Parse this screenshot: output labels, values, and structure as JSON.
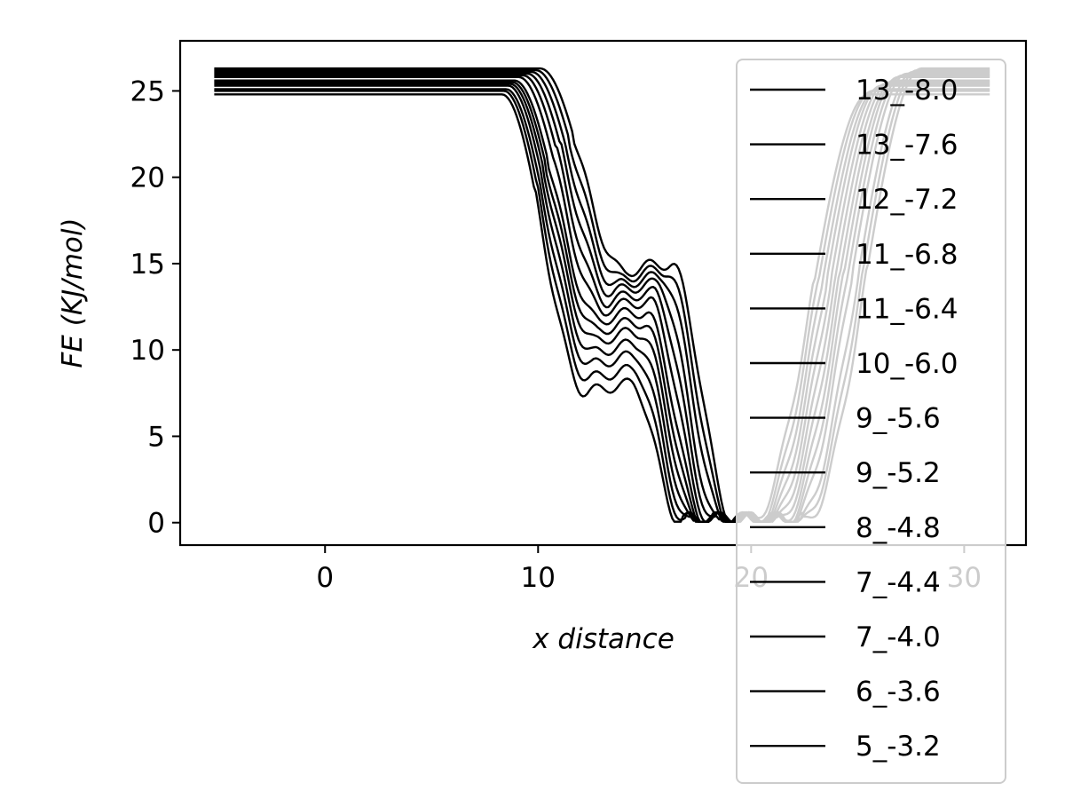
{
  "chart_data": {
    "type": "line",
    "title": "",
    "xlabel": "x distance",
    "ylabel": "FE (KJ/mol)",
    "xlim": [
      -6.8,
      32.9
    ],
    "ylim": [
      -1.3,
      27.9
    ],
    "xticks": [
      0,
      10,
      20,
      30
    ],
    "yticks": [
      0,
      5,
      10,
      15,
      20,
      25
    ],
    "grid": false,
    "legend_position": "right",
    "line_color": "#000000",
    "series": [
      {
        "name": "13_-8.0",
        "plateau": 26.3,
        "drop": 11.6,
        "hump": 15.0,
        "valley": 19.5
      },
      {
        "name": "13_-7.6",
        "plateau": 26.2,
        "drop": 11.4,
        "hump": 14.6,
        "valley": 19.3
      },
      {
        "name": "12_-7.2",
        "plateau": 26.1,
        "drop": 11.2,
        "hump": 14.2,
        "valley": 19.1
      },
      {
        "name": "11_-6.8",
        "plateau": 26.0,
        "drop": 11.0,
        "hump": 13.8,
        "valley": 18.8
      },
      {
        "name": "11_-6.4",
        "plateau": 25.9,
        "drop": 10.8,
        "hump": 13.3,
        "valley": 18.6
      },
      {
        "name": "10_-6.0",
        "plateau": 25.8,
        "drop": 10.6,
        "hump": 12.8,
        "valley": 18.4
      },
      {
        "name": "9_-5.6",
        "plateau": 25.6,
        "drop": 10.4,
        "hump": 12.2,
        "valley": 18.2
      },
      {
        "name": "9_-5.2",
        "plateau": 25.5,
        "drop": 10.3,
        "hump": 11.6,
        "valley": 18.0
      },
      {
        "name": "8_-4.8",
        "plateau": 25.4,
        "drop": 10.2,
        "hump": 11.0,
        "valley": 17.8
      },
      {
        "name": "7_-4.4",
        "plateau": 25.3,
        "drop": 10.1,
        "hump": 10.3,
        "valley": 17.6
      },
      {
        "name": "7_-4.0",
        "plateau": 25.1,
        "drop": 10.0,
        "hump": 9.6,
        "valley": 17.4
      },
      {
        "name": "6_-3.6",
        "plateau": 25.0,
        "drop": 9.9,
        "hump": 8.8,
        "valley": 17.2
      },
      {
        "name": "5_-3.2",
        "plateau": 24.8,
        "drop": 9.8,
        "hump": 8.0,
        "valley": 17.0
      }
    ]
  }
}
